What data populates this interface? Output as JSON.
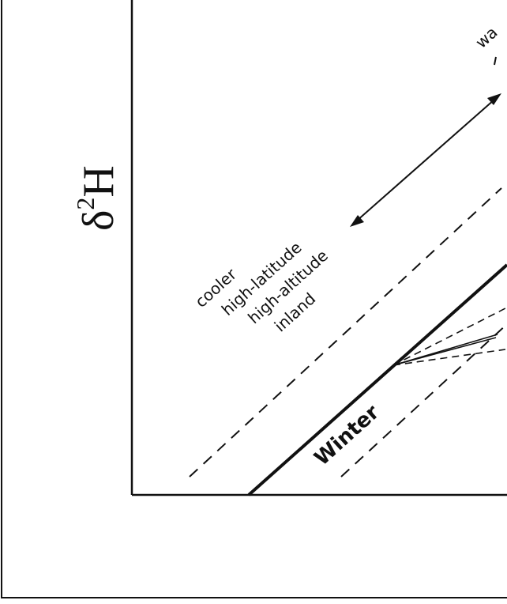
{
  "axis": {
    "y_label_symbol": "δ",
    "y_label_superscript": "2",
    "y_label_element": "H"
  },
  "labels": {
    "warm_fragment": "wa",
    "cooler": "cooler",
    "high_latitude": "high-latitude",
    "high_altitude": "high-altitude",
    "inland": "inland",
    "winter": "Winter"
  },
  "colors": {
    "ink": "#111111",
    "background": "#ffffff"
  },
  "icons": {
    "double_arrow": "double-headed-arrow-icon"
  }
}
